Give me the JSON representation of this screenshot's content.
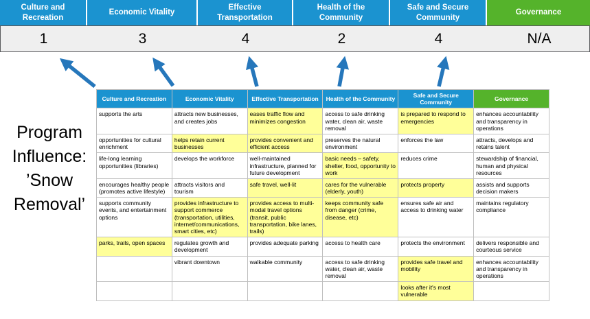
{
  "title": "Program Influence: ’Snow Removal’",
  "colors": {
    "blue": "#1b93d0",
    "green": "#55b32b",
    "yellow": "#ffff99",
    "arrow": "#2677bb"
  },
  "scoreboard": [
    {
      "label": "Culture and Recreation",
      "score": "1",
      "theme": "blue"
    },
    {
      "label": "Economic Vitality",
      "score": "3",
      "theme": "blue"
    },
    {
      "label": "Effective Transportation",
      "score": "4",
      "theme": "blue"
    },
    {
      "label": "Health of the Community",
      "score": "2",
      "theme": "blue"
    },
    {
      "label": "Safe and Secure Community",
      "score": "4",
      "theme": "blue"
    },
    {
      "label": "Governance",
      "score": "N/A",
      "theme": "green"
    }
  ],
  "table": {
    "headers": [
      "Culture and Recreation",
      "Economic Vitality",
      "Effective Transportation",
      "Health of the Community",
      "Safe and Secure Community",
      "Governance"
    ],
    "rows": [
      [
        {
          "t": "supports the arts"
        },
        {
          "t": "attracts new businesses, and creates jobs"
        },
        {
          "t": "eases traffic flow and minimizes congestion",
          "h": true
        },
        {
          "t": "access to safe drinking water, clean air, waste removal"
        },
        {
          "t": "is prepared to respond to emergencies",
          "h": true
        },
        {
          "t": "enhances accountability and transparency in operations"
        }
      ],
      [
        {
          "t": "opportunities for cultural enrichment"
        },
        {
          "t": "helps retain current businesses",
          "h": true
        },
        {
          "t": "provides convenient and efficient access",
          "h": true
        },
        {
          "t": "preserves the natural environment"
        },
        {
          "t": "enforces the law"
        },
        {
          "t": "attracts, develops and retains talent"
        }
      ],
      [
        {
          "t": "life-long learning opportunities (libraries)"
        },
        {
          "t": "develops the workforce"
        },
        {
          "t": "well-maintained infrastructure, planned for future development"
        },
        {
          "t": "basic needs – safety, shelter, food, opportunity to work",
          "h": true
        },
        {
          "t": "reduces crime"
        },
        {
          "t": "stewardship of financial, human and physical resources"
        }
      ],
      [
        {
          "t": "encourages healthy people (promotes active lifestyle)"
        },
        {
          "t": "attracts visitors and tourism"
        },
        {
          "t": "safe travel, well-lit",
          "h": true
        },
        {
          "t": "cares for the vulnerable (elderly, youth)",
          "h": true
        },
        {
          "t": "protects property",
          "h": true
        },
        {
          "t": "assists and supports decision makers"
        }
      ],
      [
        {
          "t": "supports community events, and entertainment options"
        },
        {
          "t": "provides infrastructure to support commerce (transportation, utilities, internet/communications, smart cities, etc)",
          "h": true
        },
        {
          "t": "provides access to multi-modal travel options (transit, public transportation, bike lanes, trails)",
          "h": true
        },
        {
          "t": "keeps community safe from danger (crime, disease, etc)",
          "h": true
        },
        {
          "t": "ensures safe air and access to drinking water"
        },
        {
          "t": "maintains regulatory compliance"
        }
      ],
      [
        {
          "t": "parks, trails, open spaces",
          "h": true
        },
        {
          "t": "regulates growth and development"
        },
        {
          "t": "provides adequate parking"
        },
        {
          "t": "access to health care"
        },
        {
          "t": "protects the environment"
        },
        {
          "t": "delivers responsible and courteous service"
        }
      ],
      [
        {
          "t": ""
        },
        {
          "t": "vibrant downtown"
        },
        {
          "t": "walkable community"
        },
        {
          "t": "access to safe drinking water, clean air, waste removal"
        },
        {
          "t": "provides safe travel and mobility",
          "h": true
        },
        {
          "t": "enhances accountability and transparency in operations"
        }
      ],
      [
        {
          "t": ""
        },
        {
          "t": ""
        },
        {
          "t": ""
        },
        {
          "t": ""
        },
        {
          "t": "looks after it's most vulnerable",
          "h": true
        },
        {
          "t": ""
        }
      ]
    ]
  }
}
